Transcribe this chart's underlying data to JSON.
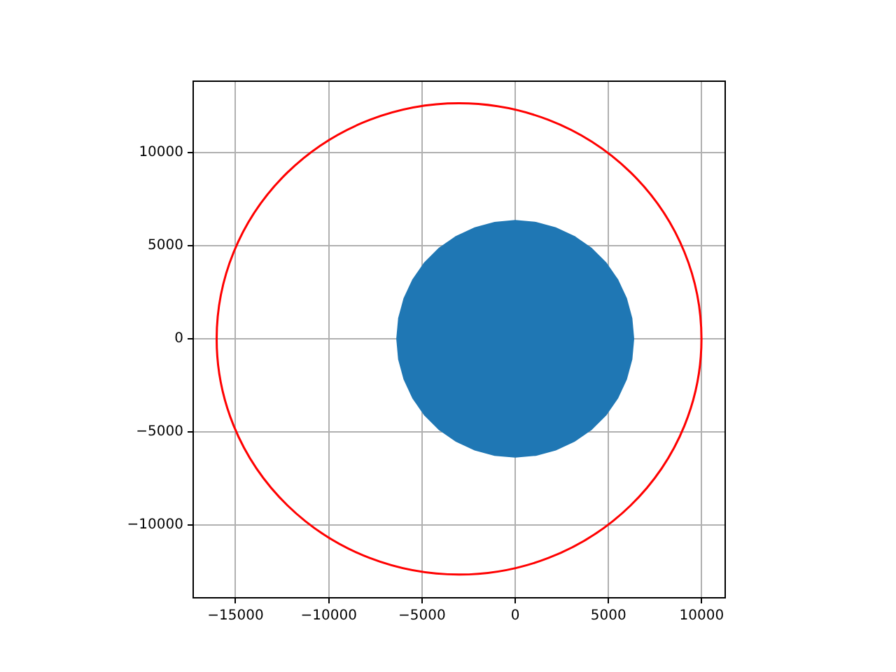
{
  "chart_data": {
    "type": "area",
    "xlim": [
      -17270,
      11260
    ],
    "ylim": [
      -13900,
      13830
    ],
    "xticks": [
      -15000,
      -10000,
      -5000,
      0,
      5000,
      10000
    ],
    "yticks": [
      -10000,
      -5000,
      0,
      5000,
      10000
    ],
    "grid": true,
    "series": [
      {
        "color": "#1f77b4",
        "x": [
          6380,
          6280,
          5990,
          5520,
          4890,
          4100,
          3190,
          2180,
          1110,
          0,
          -1110,
          -2180,
          -3190,
          -4100,
          -4890,
          -5520,
          -5990,
          -6280,
          -6380,
          -6280,
          -5990,
          -5520,
          -4890,
          -4100,
          -3190,
          -2180,
          -1110,
          0,
          1110,
          2180,
          3190,
          4100,
          4890,
          5520,
          5990,
          6280,
          6380
        ],
        "values": [
          0,
          1110,
          2180,
          3190,
          4100,
          4890,
          5520,
          5990,
          6280,
          6380,
          6280,
          5990,
          5520,
          4890,
          4100,
          3190,
          2180,
          1110,
          0,
          -1110,
          -2180,
          -3190,
          -4100,
          -4890,
          -5520,
          -5990,
          -6280,
          -6380,
          -6280,
          -5990,
          -5520,
          -4890,
          -4100,
          -3190,
          -2180,
          -1110,
          0
        ]
      }
    ]
  }
}
